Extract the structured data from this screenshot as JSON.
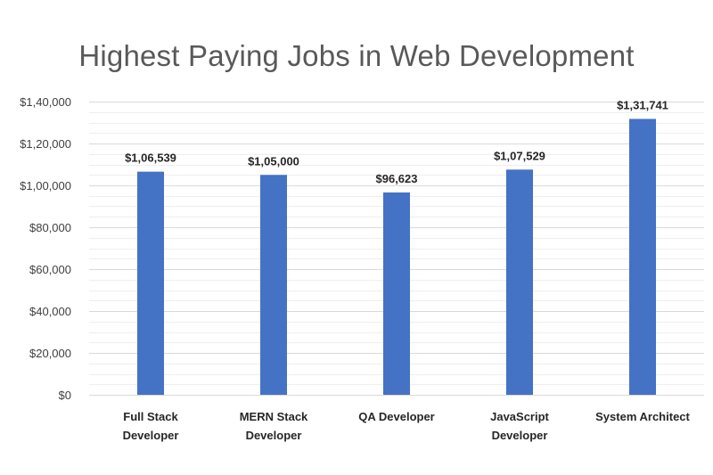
{
  "chart_data": {
    "type": "bar",
    "title": "Highest Paying Jobs in Web Development",
    "categories": [
      [
        "Full Stack",
        "Developer"
      ],
      [
        "MERN Stack",
        "Developer"
      ],
      [
        "QA Developer"
      ],
      [
        "JavaScript",
        "Developer"
      ],
      [
        "System Architect"
      ]
    ],
    "values": [
      106539,
      105000,
      96623,
      107529,
      131741
    ],
    "data_labels": [
      "$1,06,539",
      "$1,05,000",
      "$96,623",
      "$1,07,529",
      "$1,31,741"
    ],
    "y_ticks": [
      0,
      20000,
      40000,
      60000,
      80000,
      100000,
      120000,
      140000
    ],
    "y_tick_labels": [
      "$0",
      "$20,000",
      "$40,000",
      "$60,000",
      "$80,000",
      "$1,00,000",
      "$1,20,000",
      "$1,40,000"
    ],
    "ylim": [
      0,
      140000
    ],
    "grid": true,
    "legend": "none",
    "bar_color": "#4472c4"
  }
}
